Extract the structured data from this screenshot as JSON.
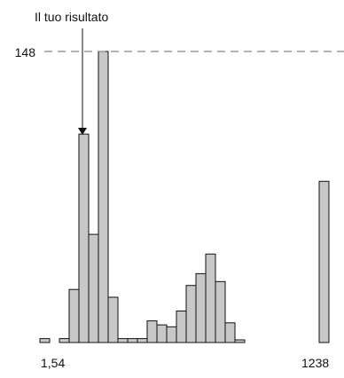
{
  "chart_data": {
    "type": "bar",
    "annotation": "Il tuo risultato",
    "marked_bin_index": 4,
    "reference_value": 148,
    "reference_label": "148",
    "x_min_label": "1,54",
    "x_max_label": "1238",
    "ylim": [
      0,
      148
    ],
    "bar_color": "#c8c8c8",
    "bar_edge_color": "#111111",
    "values": [
      2,
      0,
      2,
      27,
      106,
      55,
      148,
      23,
      2,
      2,
      2,
      11,
      9,
      8,
      16,
      29,
      35,
      45,
      31,
      10,
      1
    ],
    "outlier_value": 82
  }
}
